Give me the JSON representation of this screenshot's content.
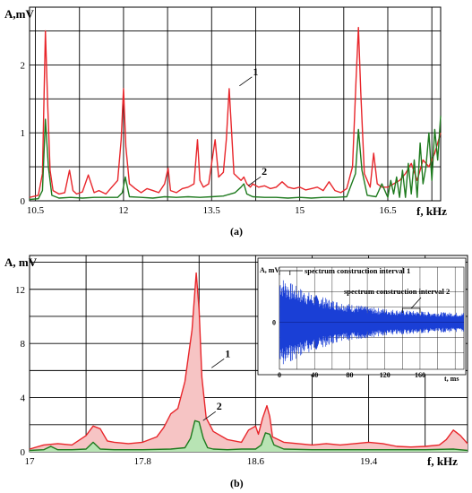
{
  "chart_data": [
    {
      "type": "line",
      "panel_label": "(a)",
      "ylabel": "A,mV",
      "xlabel": "f, kHz",
      "xlim": [
        10.4,
        17.4
      ],
      "ylim": [
        0,
        2.85
      ],
      "x_ticks": [
        10.5,
        12,
        13.5,
        15,
        16.5
      ],
      "x_tick_labels": [
        "10.5",
        "12",
        "13.5",
        "15",
        "16.5"
      ],
      "y_ticks": [
        0,
        1,
        2
      ],
      "y_tick_labels": [
        "0",
        "1",
        "2"
      ],
      "grid": true,
      "colors": {
        "series_1": "#e8262b",
        "series_2": "#1e7a1e"
      },
      "series": [
        {
          "name": "1",
          "x": [
            10.4,
            10.55,
            10.62,
            10.67,
            10.71,
            10.75,
            10.8,
            10.9,
            11.0,
            11.08,
            11.14,
            11.2,
            11.3,
            11.4,
            11.5,
            11.58,
            11.7,
            11.8,
            11.9,
            11.96,
            12.0,
            12.04,
            12.1,
            12.2,
            12.3,
            12.4,
            12.5,
            12.6,
            12.7,
            12.76,
            12.8,
            12.9,
            13.0,
            13.1,
            13.2,
            13.26,
            13.3,
            13.36,
            13.45,
            13.5,
            13.56,
            13.62,
            13.7,
            13.75,
            13.8,
            13.88,
            14.0,
            14.05,
            14.1,
            14.16,
            14.2,
            14.3,
            14.4,
            14.5,
            14.6,
            14.7,
            14.8,
            14.9,
            15.0,
            15.1,
            15.2,
            15.3,
            15.4,
            15.5,
            15.6,
            15.7,
            15.8,
            15.9,
            15.96,
            16.0,
            16.04,
            16.1,
            16.2,
            16.26,
            16.32,
            16.4,
            16.5,
            16.6,
            16.7,
            16.8,
            16.9,
            17.0,
            17.1,
            17.2,
            17.3,
            17.4
          ],
          "y": [
            0.05,
            0.08,
            0.4,
            2.5,
            1.4,
            0.45,
            0.15,
            0.1,
            0.12,
            0.45,
            0.15,
            0.1,
            0.13,
            0.38,
            0.12,
            0.15,
            0.1,
            0.2,
            0.3,
            0.9,
            1.65,
            0.8,
            0.25,
            0.18,
            0.12,
            0.18,
            0.15,
            0.12,
            0.25,
            0.48,
            0.15,
            0.12,
            0.18,
            0.2,
            0.25,
            0.9,
            0.3,
            0.2,
            0.25,
            0.55,
            0.9,
            0.35,
            0.42,
            0.9,
            1.65,
            0.4,
            0.3,
            0.35,
            0.25,
            0.2,
            0.25,
            0.2,
            0.22,
            0.18,
            0.2,
            0.28,
            0.2,
            0.18,
            0.2,
            0.16,
            0.18,
            0.2,
            0.15,
            0.28,
            0.15,
            0.12,
            0.18,
            0.5,
            1.8,
            2.55,
            1.6,
            0.4,
            0.2,
            0.7,
            0.25,
            0.2,
            0.2,
            0.25,
            0.3,
            0.4,
            0.55,
            0.3,
            0.6,
            0.5,
            0.7,
            1.0
          ]
        },
        {
          "name": "2",
          "x": [
            10.4,
            10.55,
            10.62,
            10.67,
            10.72,
            10.78,
            10.9,
            11.1,
            11.3,
            11.5,
            11.7,
            11.9,
            11.98,
            12.03,
            12.1,
            12.3,
            12.5,
            12.7,
            12.9,
            13.1,
            13.3,
            13.5,
            13.7,
            13.9,
            14.0,
            14.05,
            14.1,
            14.2,
            14.4,
            14.6,
            14.8,
            15.0,
            15.2,
            15.4,
            15.6,
            15.8,
            15.95,
            16.0,
            16.06,
            16.15,
            16.3,
            16.4,
            16.5,
            16.55,
            16.6,
            16.65,
            16.7,
            16.75,
            16.8,
            16.85,
            16.9,
            16.95,
            17.0,
            17.05,
            17.1,
            17.15,
            17.2,
            17.25,
            17.3,
            17.35,
            17.4
          ],
          "y": [
            0.02,
            0.03,
            0.15,
            1.2,
            0.5,
            0.08,
            0.04,
            0.05,
            0.04,
            0.05,
            0.05,
            0.05,
            0.12,
            0.35,
            0.06,
            0.05,
            0.04,
            0.06,
            0.05,
            0.06,
            0.05,
            0.06,
            0.07,
            0.12,
            0.2,
            0.25,
            0.1,
            0.06,
            0.05,
            0.05,
            0.04,
            0.05,
            0.04,
            0.05,
            0.05,
            0.06,
            0.4,
            1.05,
            0.45,
            0.08,
            0.06,
            0.25,
            0.05,
            0.3,
            0.1,
            0.35,
            0.05,
            0.45,
            0.05,
            0.55,
            0.1,
            0.6,
            0.05,
            0.85,
            0.25,
            0.5,
            1.0,
            0.3,
            1.05,
            0.6,
            1.25
          ]
        }
      ],
      "annotations": [
        {
          "text": "1",
          "x": 14.05,
          "y": 1.85
        },
        {
          "text": "2",
          "x": 14.2,
          "y": 0.38
        }
      ]
    },
    {
      "type": "area",
      "panel_label": "(b)",
      "ylabel": "A, mV",
      "xlabel": "f, kHz",
      "xlim": [
        17.0,
        20.1
      ],
      "ylim": [
        0,
        14.5
      ],
      "x_ticks": [
        17,
        17.8,
        18.6,
        19.4
      ],
      "x_tick_labels": [
        "17",
        "17.8",
        "18.6",
        "19.4"
      ],
      "y_ticks": [
        0,
        4,
        8,
        12
      ],
      "y_tick_labels": [
        "0",
        "4",
        "8",
        "12"
      ],
      "grid": true,
      "colors": {
        "series_1": "#e8262b",
        "series_1_fill": "#f6c4c4",
        "series_2": "#1e7a1e",
        "series_2_fill": "#b8e4b4"
      },
      "series": [
        {
          "name": "1",
          "x": [
            17.0,
            17.1,
            17.2,
            17.3,
            17.4,
            17.45,
            17.5,
            17.55,
            17.6,
            17.7,
            17.8,
            17.9,
            17.95,
            18.0,
            18.05,
            18.1,
            18.15,
            18.18,
            18.2,
            18.22,
            18.25,
            18.3,
            18.4,
            18.5,
            18.55,
            18.6,
            18.62,
            18.65,
            18.68,
            18.7,
            18.72,
            18.8,
            18.9,
            19.0,
            19.1,
            19.2,
            19.3,
            19.4,
            19.5,
            19.6,
            19.7,
            19.8,
            19.9,
            19.95,
            20.0,
            20.05,
            20.1
          ],
          "y": [
            0.2,
            0.5,
            0.6,
            0.5,
            1.2,
            1.9,
            1.7,
            0.8,
            0.7,
            0.6,
            0.7,
            1.1,
            1.8,
            2.8,
            3.2,
            5.2,
            9.0,
            13.2,
            10.5,
            5.5,
            2.5,
            1.5,
            0.9,
            0.7,
            1.6,
            1.9,
            1.3,
            2.5,
            3.4,
            2.6,
            1.1,
            0.7,
            0.6,
            0.5,
            0.6,
            0.5,
            0.6,
            0.7,
            0.6,
            0.4,
            0.35,
            0.4,
            0.5,
            0.9,
            1.6,
            1.2,
            0.6
          ]
        },
        {
          "name": "2",
          "x": [
            17.0,
            17.1,
            17.15,
            17.2,
            17.3,
            17.4,
            17.45,
            17.5,
            17.6,
            17.8,
            18.0,
            18.1,
            18.14,
            18.17,
            18.2,
            18.23,
            18.26,
            18.3,
            18.4,
            18.5,
            18.6,
            18.64,
            18.67,
            18.7,
            18.73,
            18.8,
            19.0,
            19.2,
            19.4,
            19.6,
            19.8,
            20.0,
            20.1
          ],
          "y": [
            0.1,
            0.15,
            0.4,
            0.15,
            0.15,
            0.2,
            0.7,
            0.2,
            0.15,
            0.15,
            0.2,
            0.3,
            1.0,
            2.3,
            2.2,
            1.0,
            0.3,
            0.2,
            0.15,
            0.2,
            0.2,
            0.5,
            1.4,
            1.3,
            0.5,
            0.2,
            0.15,
            0.15,
            0.15,
            0.15,
            0.15,
            0.2,
            0.1
          ]
        }
      ],
      "annotations": [
        {
          "text": "1",
          "x": 18.32,
          "y": 7.0
        },
        {
          "text": "2",
          "x": 18.26,
          "y": 3.1
        }
      ],
      "inset": {
        "type": "line",
        "xlabel": "t, ms",
        "ylabel": "A, mV",
        "xlim": [
          0,
          210
        ],
        "x_ticks": [
          0,
          40,
          80,
          120,
          160
        ],
        "x_tick_labels": [
          "0",
          "40",
          "80",
          "120",
          "160"
        ],
        "y_ticks": [
          0
        ],
        "y_tick_labels": [
          "0"
        ],
        "color": "#1a3fd6",
        "signal": {
          "shape": "decaying oscillation",
          "peak_amplitude": 1.0,
          "decay_time_ms": 60,
          "end_amplitude": 0.18
        },
        "annotations": [
          {
            "text": "spectrum construction interval 1",
            "x_start": 0,
            "x_end": 12
          },
          {
            "text": "spectrum construction interval 2",
            "x_start": 140,
            "x_end": 160
          }
        ]
      }
    }
  ]
}
